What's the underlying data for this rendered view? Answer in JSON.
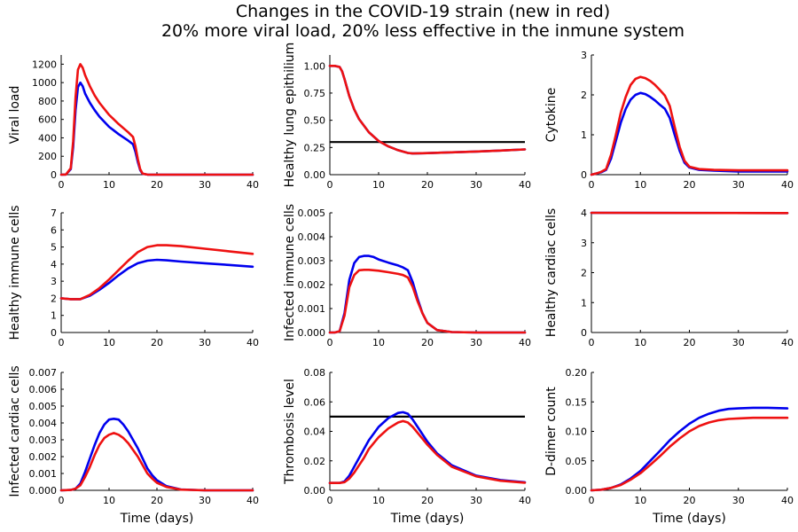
{
  "title": {
    "line1": "Changes in the COVID-19 strain (new in red)",
    "line2": "20% more viral load, 20% less effective in the inmune system"
  },
  "colors": {
    "old": "#0000ee",
    "new": "#ee1111",
    "threshold": "#000000"
  },
  "chart_data": [
    {
      "type": "line",
      "title": "",
      "xlabel": "",
      "ylabel": "Viral load",
      "xlim": [
        0,
        40
      ],
      "xticks": [
        0,
        10,
        20,
        30,
        40
      ],
      "ylim": [
        0,
        1300
      ],
      "yticks": [
        0,
        200,
        400,
        600,
        800,
        1000,
        1200
      ],
      "yticklabels": [
        "0",
        "200",
        "400",
        "600",
        "800",
        "1000",
        "1200"
      ],
      "series": [
        {
          "color": "old",
          "x": [
            0,
            1,
            2,
            2.5,
            3,
            3.5,
            4,
            4.5,
            5,
            6,
            7,
            8,
            10,
            12,
            14,
            15,
            15.5,
            16,
            16.5,
            17,
            18,
            20,
            25,
            30,
            40
          ],
          "y": [
            0,
            2,
            60,
            300,
            700,
            950,
            1000,
            960,
            880,
            780,
            700,
            630,
            520,
            440,
            370,
            330,
            250,
            140,
            50,
            10,
            1,
            0,
            0,
            0,
            0
          ]
        },
        {
          "color": "new",
          "x": [
            0,
            1,
            2,
            2.5,
            3,
            3.5,
            4,
            4.5,
            5,
            6,
            7,
            8,
            10,
            12,
            14,
            15,
            15.5,
            16,
            16.5,
            17,
            18,
            20,
            25,
            30,
            40
          ],
          "y": [
            0,
            2,
            70,
            360,
            840,
            1140,
            1200,
            1160,
            1080,
            960,
            860,
            780,
            650,
            550,
            460,
            410,
            310,
            170,
            60,
            12,
            1,
            0,
            0,
            0,
            0
          ]
        }
      ]
    },
    {
      "type": "line",
      "title": "",
      "xlabel": "",
      "ylabel": "Healthy lung epithilium",
      "xlim": [
        0,
        40
      ],
      "xticks": [
        0,
        10,
        20,
        30,
        40
      ],
      "ylim": [
        0,
        1.1
      ],
      "yticks": [
        0,
        0.25,
        0.5,
        0.75,
        1.0
      ],
      "yticklabels": [
        "0.00",
        "0.25",
        "0.50",
        "0.75",
        "1.00"
      ],
      "hline": 0.3,
      "series": [
        {
          "color": "old",
          "x": [
            0,
            1,
            2,
            2.5,
            3,
            4,
            5,
            6,
            8,
            10,
            12,
            14,
            16,
            17,
            20,
            25,
            30,
            35,
            40
          ],
          "y": [
            1.0,
            1.0,
            0.99,
            0.95,
            0.88,
            0.72,
            0.6,
            0.51,
            0.39,
            0.31,
            0.26,
            0.225,
            0.2,
            0.195,
            0.198,
            0.205,
            0.213,
            0.222,
            0.232
          ]
        },
        {
          "color": "new",
          "x": [
            0,
            1,
            2,
            2.5,
            3,
            4,
            5,
            6,
            8,
            10,
            12,
            14,
            16,
            17,
            20,
            25,
            30,
            35,
            40
          ],
          "y": [
            1.0,
            1.0,
            0.99,
            0.95,
            0.88,
            0.72,
            0.6,
            0.51,
            0.39,
            0.31,
            0.26,
            0.225,
            0.2,
            0.195,
            0.198,
            0.205,
            0.213,
            0.222,
            0.232
          ]
        }
      ]
    },
    {
      "type": "line",
      "title": "",
      "xlabel": "",
      "ylabel": "Cytokine",
      "xlim": [
        0,
        40
      ],
      "xticks": [
        0,
        10,
        20,
        30,
        40
      ],
      "ylim": [
        0,
        3
      ],
      "yticks": [
        0,
        1,
        2,
        3
      ],
      "yticklabels": [
        "0",
        "1",
        "2",
        "3"
      ],
      "series": [
        {
          "color": "old",
          "x": [
            0,
            1,
            2,
            3,
            4,
            5,
            6,
            7,
            8,
            9,
            10,
            11,
            12,
            13,
            14,
            15,
            16,
            17,
            18,
            19,
            20,
            22,
            25,
            30,
            40
          ],
          "y": [
            0,
            0.03,
            0.06,
            0.12,
            0.4,
            0.85,
            1.3,
            1.65,
            1.88,
            2.0,
            2.05,
            2.02,
            1.95,
            1.86,
            1.75,
            1.65,
            1.42,
            1.0,
            0.6,
            0.3,
            0.18,
            0.12,
            0.1,
            0.08,
            0.08
          ]
        },
        {
          "color": "new",
          "x": [
            0,
            1,
            2,
            3,
            4,
            5,
            6,
            7,
            8,
            9,
            10,
            11,
            12,
            13,
            14,
            15,
            16,
            17,
            18,
            19,
            20,
            22,
            25,
            30,
            40
          ],
          "y": [
            0,
            0.03,
            0.07,
            0.14,
            0.5,
            1.0,
            1.55,
            1.95,
            2.25,
            2.4,
            2.45,
            2.42,
            2.35,
            2.25,
            2.12,
            1.98,
            1.72,
            1.2,
            0.7,
            0.35,
            0.2,
            0.14,
            0.12,
            0.11,
            0.11
          ]
        }
      ]
    },
    {
      "type": "line",
      "title": "",
      "xlabel": "",
      "ylabel": "Healthy immune cells",
      "xlim": [
        0,
        40
      ],
      "xticks": [
        0,
        10,
        20,
        30,
        40
      ],
      "ylim": [
        0,
        7
      ],
      "yticks": [
        0,
        1,
        2,
        3,
        4,
        5,
        6,
        7
      ],
      "yticklabels": [
        "0",
        "1",
        "2",
        "3",
        "4",
        "5",
        "6",
        "7"
      ],
      "series": [
        {
          "color": "old",
          "x": [
            0,
            2,
            4,
            6,
            8,
            10,
            12,
            14,
            16,
            18,
            20,
            22,
            25,
            30,
            35,
            40
          ],
          "y": [
            2.0,
            1.95,
            1.95,
            2.15,
            2.5,
            2.9,
            3.35,
            3.75,
            4.05,
            4.2,
            4.25,
            4.22,
            4.15,
            4.05,
            3.95,
            3.85
          ]
        },
        {
          "color": "new",
          "x": [
            0,
            2,
            4,
            6,
            8,
            10,
            12,
            14,
            16,
            18,
            20,
            22,
            25,
            30,
            35,
            40
          ],
          "y": [
            2.0,
            1.95,
            1.95,
            2.2,
            2.6,
            3.1,
            3.65,
            4.2,
            4.7,
            5.0,
            5.1,
            5.1,
            5.05,
            4.9,
            4.75,
            4.6
          ]
        }
      ]
    },
    {
      "type": "line",
      "title": "",
      "xlabel": "",
      "ylabel": "Infected immune cells",
      "xlim": [
        0,
        40
      ],
      "xticks": [
        0,
        10,
        20,
        30,
        40
      ],
      "ylim": [
        0,
        0.005
      ],
      "yticks": [
        0,
        0.001,
        0.002,
        0.003,
        0.004,
        0.005
      ],
      "yticklabels": [
        "0.000",
        "0.001",
        "0.002",
        "0.003",
        "0.004",
        "0.005"
      ],
      "series": [
        {
          "color": "old",
          "x": [
            0,
            1,
            2,
            3,
            4,
            5,
            6,
            7,
            8,
            9,
            10,
            12,
            14,
            15,
            16,
            17,
            18,
            19,
            20,
            22,
            25,
            30,
            40
          ],
          "y": [
            0,
            0,
            5e-05,
            0.0008,
            0.0022,
            0.0029,
            0.00315,
            0.0032,
            0.0032,
            0.00315,
            0.00305,
            0.00292,
            0.0028,
            0.00272,
            0.0026,
            0.0021,
            0.0014,
            0.0008,
            0.0004,
            0.0001,
            2e-05,
            0,
            0
          ]
        },
        {
          "color": "new",
          "x": [
            0,
            1,
            2,
            3,
            4,
            5,
            6,
            7,
            8,
            9,
            10,
            12,
            14,
            15,
            16,
            17,
            18,
            19,
            20,
            22,
            25,
            30,
            40
          ],
          "y": [
            0,
            0,
            5e-05,
            0.0007,
            0.0019,
            0.0024,
            0.0026,
            0.00262,
            0.00262,
            0.0026,
            0.00258,
            0.00252,
            0.00245,
            0.0024,
            0.0023,
            0.0019,
            0.0013,
            0.0008,
            0.0004,
            0.0001,
            2e-05,
            0,
            0
          ]
        }
      ]
    },
    {
      "type": "line",
      "title": "",
      "xlabel": "",
      "ylabel": "Healthy cardiac cells",
      "xlim": [
        0,
        40
      ],
      "xticks": [
        0,
        10,
        20,
        30,
        40
      ],
      "ylim": [
        0,
        4
      ],
      "yticks": [
        0,
        1,
        2,
        3,
        4
      ],
      "yticklabels": [
        "0",
        "1",
        "2",
        "3",
        "4"
      ],
      "series": [
        {
          "color": "old",
          "x": [
            0,
            40
          ],
          "y": [
            4.0,
            3.99
          ]
        },
        {
          "color": "new",
          "x": [
            0,
            40
          ],
          "y": [
            4.0,
            3.99
          ]
        }
      ]
    },
    {
      "type": "line",
      "title": "",
      "xlabel": "Time (days)",
      "ylabel": "Infected cardiac cells",
      "xlim": [
        0,
        40
      ],
      "xticks": [
        0,
        10,
        20,
        30,
        40
      ],
      "ylim": [
        0,
        0.007
      ],
      "yticks": [
        0,
        0.001,
        0.002,
        0.003,
        0.004,
        0.005,
        0.006,
        0.007
      ],
      "yticklabels": [
        "0.000",
        "0.001",
        "0.002",
        "0.003",
        "0.004",
        "0.005",
        "0.006",
        "0.007"
      ],
      "series": [
        {
          "color": "old",
          "x": [
            0,
            2,
            3,
            4,
            5,
            6,
            7,
            8,
            9,
            10,
            11,
            12,
            13,
            14,
            15,
            16,
            17,
            18,
            19,
            20,
            22,
            25,
            30,
            40
          ],
          "y": [
            0,
            2e-05,
            0.0001,
            0.0004,
            0.0011,
            0.0019,
            0.0027,
            0.0034,
            0.0039,
            0.0042,
            0.00425,
            0.0042,
            0.0039,
            0.0035,
            0.003,
            0.0025,
            0.0019,
            0.0013,
            0.0009,
            0.0006,
            0.00025,
            5e-05,
            0,
            0
          ]
        },
        {
          "color": "new",
          "x": [
            0,
            2,
            3,
            4,
            5,
            6,
            7,
            8,
            9,
            10,
            11,
            12,
            13,
            14,
            15,
            16,
            17,
            18,
            19,
            20,
            22,
            25,
            30,
            40
          ],
          "y": [
            0,
            2e-05,
            0.0001,
            0.0003,
            0.0008,
            0.0014,
            0.0021,
            0.0027,
            0.0031,
            0.0033,
            0.0034,
            0.0033,
            0.0031,
            0.0028,
            0.0024,
            0.002,
            0.0015,
            0.001,
            0.0007,
            0.00045,
            0.0002,
            4e-05,
            0,
            0
          ]
        }
      ]
    },
    {
      "type": "line",
      "title": "",
      "xlabel": "Time (days)",
      "ylabel": "Thrombosis level",
      "xlim": [
        0,
        40
      ],
      "xticks": [
        0,
        10,
        20,
        30,
        40
      ],
      "ylim": [
        0,
        0.08
      ],
      "yticks": [
        0,
        0.02,
        0.04,
        0.06,
        0.08
      ],
      "yticklabels": [
        "0.00",
        "0.02",
        "0.04",
        "0.06",
        "0.08"
      ],
      "hline": 0.05,
      "series": [
        {
          "color": "old",
          "x": [
            0,
            1,
            2,
            3,
            4,
            5,
            6,
            7,
            8,
            10,
            12,
            14,
            15,
            16,
            17,
            18,
            20,
            22,
            25,
            30,
            35,
            40
          ],
          "y": [
            0.005,
            0.005,
            0.005,
            0.006,
            0.01,
            0.016,
            0.022,
            0.028,
            0.034,
            0.043,
            0.049,
            0.0525,
            0.053,
            0.052,
            0.048,
            0.043,
            0.033,
            0.025,
            0.017,
            0.01,
            0.007,
            0.0055
          ]
        },
        {
          "color": "new",
          "x": [
            0,
            1,
            2,
            3,
            4,
            5,
            6,
            7,
            8,
            10,
            12,
            14,
            15,
            16,
            17,
            18,
            20,
            22,
            25,
            30,
            35,
            40
          ],
          "y": [
            0.005,
            0.005,
            0.005,
            0.0055,
            0.008,
            0.012,
            0.017,
            0.022,
            0.028,
            0.036,
            0.042,
            0.046,
            0.047,
            0.046,
            0.043,
            0.039,
            0.031,
            0.024,
            0.016,
            0.0095,
            0.0065,
            0.0052
          ]
        }
      ]
    },
    {
      "type": "line",
      "title": "",
      "xlabel": "Time (days)",
      "ylabel": "D-dimer count",
      "xlim": [
        0,
        40
      ],
      "xticks": [
        0,
        10,
        20,
        30,
        40
      ],
      "ylim": [
        0,
        0.2
      ],
      "yticks": [
        0,
        0.05,
        0.1,
        0.15,
        0.2
      ],
      "yticklabels": [
        "0.00",
        "0.05",
        "0.10",
        "0.15",
        "0.20"
      ],
      "series": [
        {
          "color": "old",
          "x": [
            0,
            2,
            4,
            6,
            8,
            10,
            12,
            14,
            16,
            18,
            20,
            22,
            24,
            26,
            28,
            30,
            33,
            36,
            40
          ],
          "y": [
            0,
            0.001,
            0.004,
            0.01,
            0.02,
            0.033,
            0.05,
            0.067,
            0.085,
            0.1,
            0.113,
            0.123,
            0.13,
            0.135,
            0.138,
            0.139,
            0.14,
            0.14,
            0.139
          ]
        },
        {
          "color": "new",
          "x": [
            0,
            2,
            4,
            6,
            8,
            10,
            12,
            14,
            16,
            18,
            20,
            22,
            24,
            26,
            28,
            30,
            33,
            36,
            40
          ],
          "y": [
            0,
            0.001,
            0.004,
            0.009,
            0.018,
            0.029,
            0.043,
            0.058,
            0.074,
            0.088,
            0.1,
            0.109,
            0.115,
            0.119,
            0.121,
            0.122,
            0.123,
            0.123,
            0.123
          ]
        }
      ]
    }
  ]
}
